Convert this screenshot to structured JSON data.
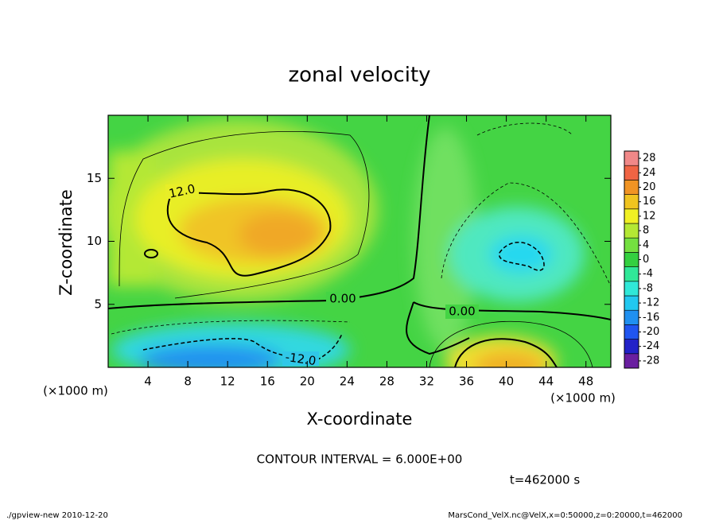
{
  "chart_data": {
    "type": "contour",
    "title": "zonal velocity",
    "xlabel": "X-coordinate",
    "ylabel": "Z-coordinate",
    "xunit": "(×1000 m)",
    "yunit": "(×1000 m)",
    "xlim": [
      0,
      50.5
    ],
    "xticks": [
      4,
      8,
      12,
      16,
      20,
      24,
      28,
      32,
      36,
      40,
      44,
      48
    ],
    "ylim": [
      0,
      20
    ],
    "yticks": [
      5,
      10,
      15
    ],
    "clim": [
      -30,
      30
    ],
    "cticks": [
      -28,
      -24,
      -20,
      -16,
      -12,
      -8,
      -4,
      0,
      4,
      8,
      12,
      16,
      20,
      24,
      28
    ],
    "colors": [
      "#6a1fa0",
      "#2222c8",
      "#2055f0",
      "#2090f0",
      "#22c8f0",
      "#30e8d8",
      "#30e898",
      "#34d040",
      "#74e040",
      "#b4e834",
      "#f0f024",
      "#f0c420",
      "#f09424",
      "#f06444",
      "#f08888"
    ],
    "contour_labels": [
      "12.0",
      "0.00",
      "0.00",
      "-12.0"
    ],
    "contour_interval": "CONTOUR INTERVAL = 6.000E+00",
    "time_label": "t=462000 s",
    "footer_left": "./gpview-new  2010-12-20",
    "footer_right": "MarsCond_VelX.nc@VelX,x=0:50000,z=0:20000,t=462000"
  }
}
